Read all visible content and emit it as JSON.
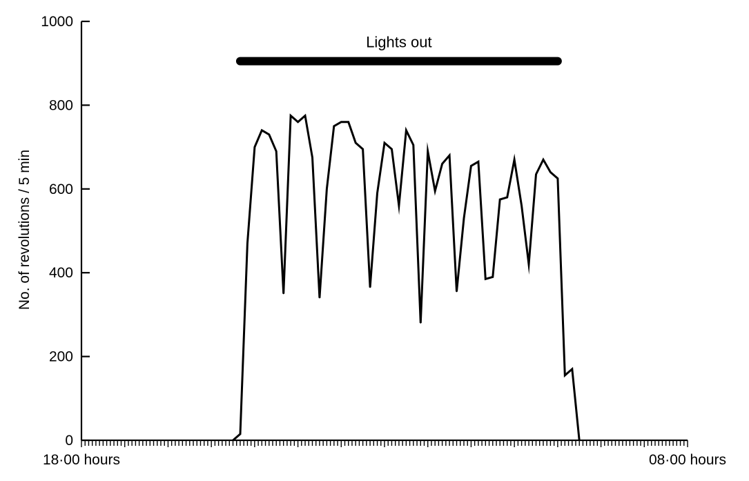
{
  "chart_data": {
    "type": "line",
    "title": "",
    "xlabel": "",
    "ylabel": "No. of revolutions / 5 min",
    "ylim": [
      0,
      1000
    ],
    "yticks": [
      0,
      200,
      400,
      600,
      800,
      1000
    ],
    "x_start_label": "18·00 hours",
    "x_end_label": "08·00 hours",
    "x_unit": "5 min intervals",
    "x_range": [
      0,
      168
    ],
    "grid": false,
    "legend": "none",
    "annotation": {
      "text": "Lights out",
      "start": 44,
      "end": 132,
      "y": 905
    },
    "series": [
      {
        "x": [
          42,
          44,
          46,
          48,
          50,
          52,
          54,
          56,
          58,
          60,
          62,
          64,
          66,
          68,
          70,
          72,
          74,
          76,
          78,
          80,
          82,
          84,
          86,
          88,
          90,
          92,
          94,
          96,
          98,
          100,
          102,
          104,
          106,
          108,
          110,
          112,
          114,
          116,
          118,
          120,
          122,
          124,
          126,
          128,
          130,
          132,
          134,
          136,
          138
        ],
        "y": [
          0,
          15,
          470,
          700,
          740,
          730,
          690,
          350,
          775,
          760,
          775,
          675,
          340,
          600,
          750,
          760,
          760,
          710,
          695,
          365,
          590,
          710,
          695,
          560,
          740,
          705,
          280,
          690,
          595,
          660,
          680,
          355,
          530,
          655,
          665,
          385,
          390,
          575,
          580,
          670,
          560,
          420,
          635,
          670,
          640,
          625,
          155,
          170,
          0
        ]
      }
    ],
    "colors": {
      "line": "#000000",
      "bar": "#000000",
      "axis": "#000000",
      "background": "#ffffff"
    }
  }
}
